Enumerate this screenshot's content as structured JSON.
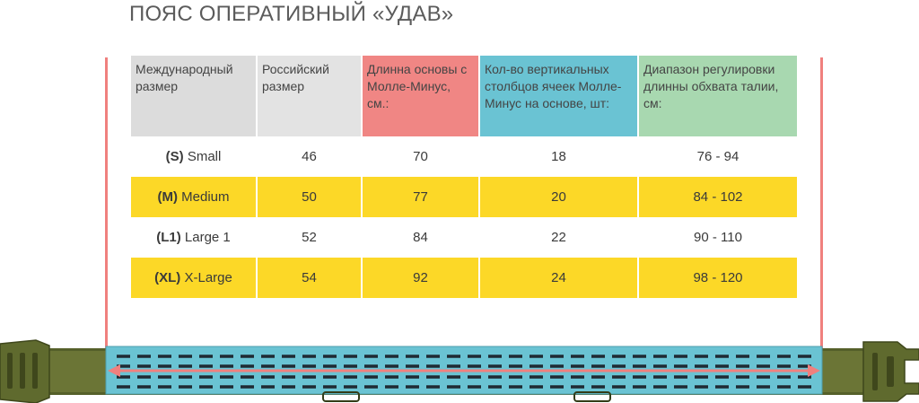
{
  "title": "ПОЯС ОПЕРАТИВНЫЙ «УДАВ»",
  "headers": [
    "Международный размер",
    "Российский размер",
    "Длинна основы с Молле-Минус, см.:",
    "Кол-во вертикальных столбцов ячеек Молле-Минус на основе, шт:",
    "Диапазон регулировки длинны обхвата талии, см:"
  ],
  "rows": [
    {
      "code": "(S)",
      "name": "Small",
      "ru": "46",
      "length": "70",
      "columns": "18",
      "range": "76 - 94"
    },
    {
      "code": "(M)",
      "name": "Medium",
      "ru": "50",
      "length": "77",
      "columns": "20",
      "range": "84 - 102"
    },
    {
      "code": "(L1)",
      "name": "Large 1",
      "ru": "52",
      "length": "84",
      "columns": "22",
      "range": "90 - 110"
    },
    {
      "code": "(XL)",
      "name": "X-Large",
      "ru": "54",
      "length": "92",
      "columns": "24",
      "range": "98 - 120"
    }
  ],
  "colors": {
    "header_gray": "#dcdcdc",
    "header_red": "#f08684",
    "header_blue": "#6ac3d3",
    "header_green": "#a8d8b0",
    "row_yellow": "#fcd827",
    "guide_red": "#f0807e",
    "belt_olive": "#6b7536",
    "molle_blue": "#6ac3d3"
  },
  "icons": [
    "buckle-icon",
    "double-arrow-icon"
  ]
}
